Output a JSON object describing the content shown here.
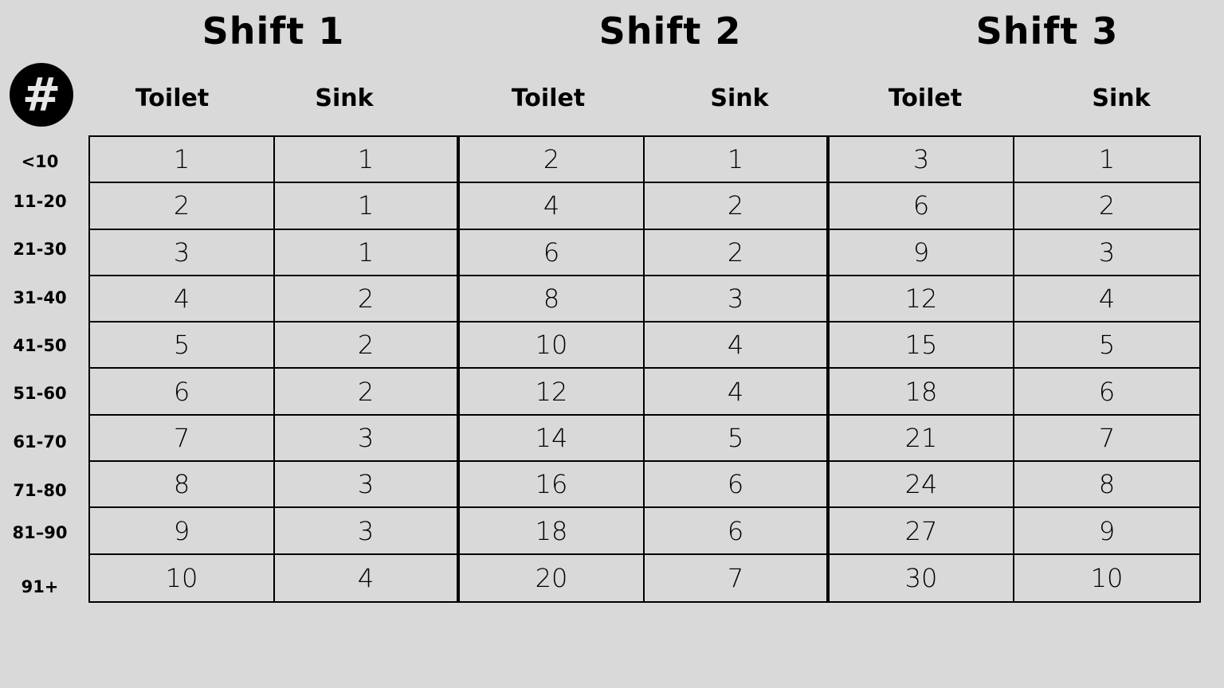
{
  "shifts": [
    "Shift 1",
    "Shift 2",
    "Shift 3"
  ],
  "columns": [
    "Toilet",
    "Sink",
    "Toilet",
    "Sink",
    "Toilet",
    "Sink"
  ],
  "icon": {
    "name": "hash-icon",
    "glyph": "#"
  },
  "row_labels": [
    "<10",
    "11-20",
    "21-30",
    "31-40",
    "41-50",
    "51-60",
    "61-70",
    "71-80",
    "81–90",
    "91+"
  ],
  "rows": [
    [
      "1",
      "1",
      "2",
      "1",
      "3",
      "1"
    ],
    [
      "2",
      "1",
      "4",
      "2",
      "6",
      "2"
    ],
    [
      "3",
      "1",
      "6",
      "2",
      "9",
      "3"
    ],
    [
      "4",
      "2",
      "8",
      "3",
      "12",
      "4"
    ],
    [
      "5",
      "2",
      "10",
      "4",
      "15",
      "5"
    ],
    [
      "6",
      "2",
      "12",
      "4",
      "18",
      "6"
    ],
    [
      "7",
      "3",
      "14",
      "5",
      "21",
      "7"
    ],
    [
      "8",
      "3",
      "16",
      "6",
      "24",
      "8"
    ],
    [
      "9",
      "3",
      "18",
      "6",
      "27",
      "9"
    ],
    [
      "10",
      "4",
      "20",
      "7",
      "30",
      "10"
    ]
  ]
}
